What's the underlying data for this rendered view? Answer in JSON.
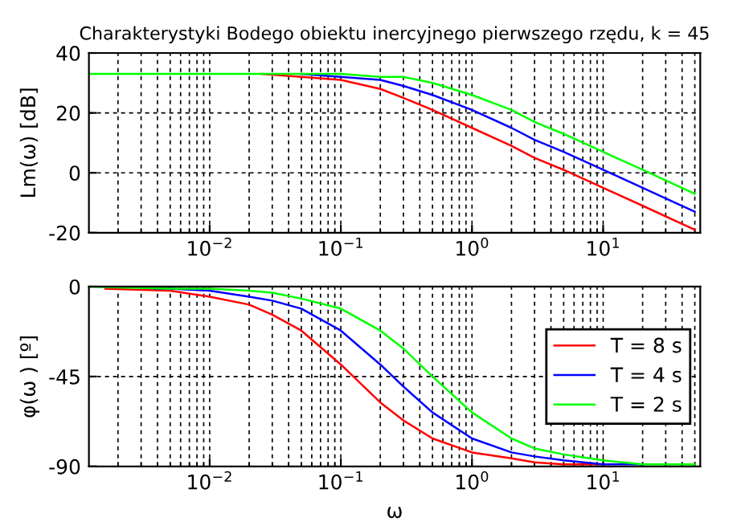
{
  "chart_data": [
    {
      "type": "line",
      "title": "Charakterystyki Bodego obiektu inercyjnego pierwszego rzędu, k = 45",
      "ylabel": "Lm(ω) [dB]",
      "log": "x",
      "grid": true,
      "xlim": [
        0.0012,
        55
      ],
      "xticks": [
        {
          "value": 0.01,
          "label": "10$^{−2}$"
        },
        {
          "value": 0.1,
          "label": "10$^{−1}$"
        },
        {
          "value": 1,
          "label": "10$^{0}$"
        },
        {
          "value": 10,
          "label": "10$^{1}$"
        }
      ],
      "ylim": [
        -20,
        40
      ],
      "yticks": [
        -20,
        0,
        20,
        40
      ],
      "series": [
        {
          "color": "#ff0000",
          "x": [
            0.025,
            0.05,
            0.1,
            0.2,
            0.3,
            0.5,
            1,
            2,
            3,
            5,
            10,
            20,
            50
          ],
          "values": [
            33,
            32,
            31,
            28,
            25,
            21,
            15,
            9,
            5,
            1,
            -5,
            -11,
            -19
          ]
        },
        {
          "color": "#0000ff",
          "x": [
            0.05,
            0.1,
            0.2,
            0.3,
            0.5,
            1,
            2,
            3,
            5,
            10,
            20,
            50
          ],
          "values": [
            33,
            32,
            31,
            29,
            26,
            21,
            15,
            11,
            7,
            1,
            -5,
            -13
          ]
        },
        {
          "color": "#00ff00",
          "x": [
            0.0012,
            0.01,
            0.05,
            0.1,
            0.2,
            0.3,
            0.5,
            1,
            2,
            3,
            5,
            10,
            20,
            50
          ],
          "values": [
            33,
            33,
            33,
            33,
            32,
            32,
            30,
            26,
            21,
            17,
            13,
            7,
            1,
            -7
          ]
        }
      ]
    },
    {
      "type": "line",
      "xlabel": "ω",
      "ylabel": "φ(ω ) [º]",
      "log": "x",
      "grid": true,
      "legend": "right",
      "xlim": [
        0.0012,
        55
      ],
      "xticks": [
        {
          "value": 0.01,
          "label": "10$^{−2}$"
        },
        {
          "value": 0.1,
          "label": "10$^{−1}$"
        },
        {
          "value": 1,
          "label": "10$^{0}$"
        },
        {
          "value": 10,
          "label": "10$^{1}$"
        }
      ],
      "ylim": [
        -90,
        0
      ],
      "yticks": [
        -90,
        -45,
        0
      ],
      "series": [
        {
          "name": "T = 8 s",
          "color": "#ff0000",
          "x": [
            0.0016,
            0.005,
            0.01,
            0.02,
            0.03,
            0.05,
            0.1,
            0.2,
            0.3,
            0.5,
            1,
            2,
            3,
            5,
            10
          ],
          "values": [
            -1,
            -2,
            -5,
            -9,
            -14,
            -22,
            -39,
            -58,
            -67,
            -76,
            -83,
            -86,
            -88,
            -89,
            -89
          ]
        },
        {
          "name": "T = 4 s",
          "color": "#0000ff",
          "x": [
            0.0038,
            0.005,
            0.01,
            0.02,
            0.03,
            0.05,
            0.1,
            0.2,
            0.3,
            0.5,
            1,
            2,
            3,
            5,
            10,
            20
          ],
          "values": [
            -1,
            -1,
            -2,
            -5,
            -7,
            -11,
            -22,
            -39,
            -50,
            -63,
            -76,
            -83,
            -85,
            -87,
            -89,
            -89
          ]
        },
        {
          "name": "T = 2 s",
          "color": "#00ff00",
          "x": [
            0.0012,
            0.005,
            0.01,
            0.02,
            0.03,
            0.05,
            0.1,
            0.2,
            0.3,
            0.5,
            1,
            2,
            3,
            5,
            10,
            20,
            50
          ],
          "values": [
            0,
            -1,
            -1,
            -2,
            -3,
            -6,
            -11,
            -22,
            -31,
            -45,
            -63,
            -76,
            -81,
            -84,
            -87,
            -89,
            -89
          ]
        }
      ]
    }
  ]
}
